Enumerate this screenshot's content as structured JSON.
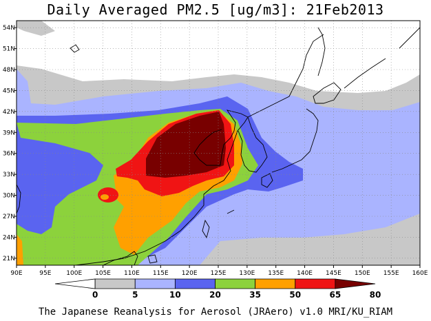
{
  "title": "Daily Averaged PM2.5 [ug/m3]: 21Feb2013",
  "credit": "The Japanese Reanalysis for Aerosol (JRAero) v1.0 MRI/KU_RIAM",
  "map": {
    "lon_range": [
      90,
      160
    ],
    "lat_range": [
      20,
      55
    ],
    "lon_ticks": [
      "90E",
      "95E",
      "100E",
      "105E",
      "110E",
      "115E",
      "120E",
      "125E",
      "130E",
      "135E",
      "140E",
      "145E",
      "150E",
      "155E",
      "160E"
    ],
    "lat_ticks": [
      "54N",
      "51N",
      "48N",
      "45N",
      "42N",
      "39N",
      "36N",
      "33N",
      "30N",
      "27N",
      "24N",
      "21N"
    ]
  },
  "colorbar": {
    "labels": [
      "0",
      "5",
      "10",
      "20",
      "35",
      "50",
      "65",
      "80"
    ],
    "colors": [
      "#ffffff",
      "#c8c8c8",
      "#aab4ff",
      "#5a64f0",
      "#8cd23c",
      "#ffa000",
      "#f01414",
      "#780000"
    ]
  },
  "colors": {
    "grey": "#c8c8c8",
    "light_blue": "#aab4ff",
    "blue": "#5a64f0",
    "green": "#8cd23c",
    "orange": "#ffa000",
    "red": "#f01414",
    "dark_red": "#780000"
  }
}
